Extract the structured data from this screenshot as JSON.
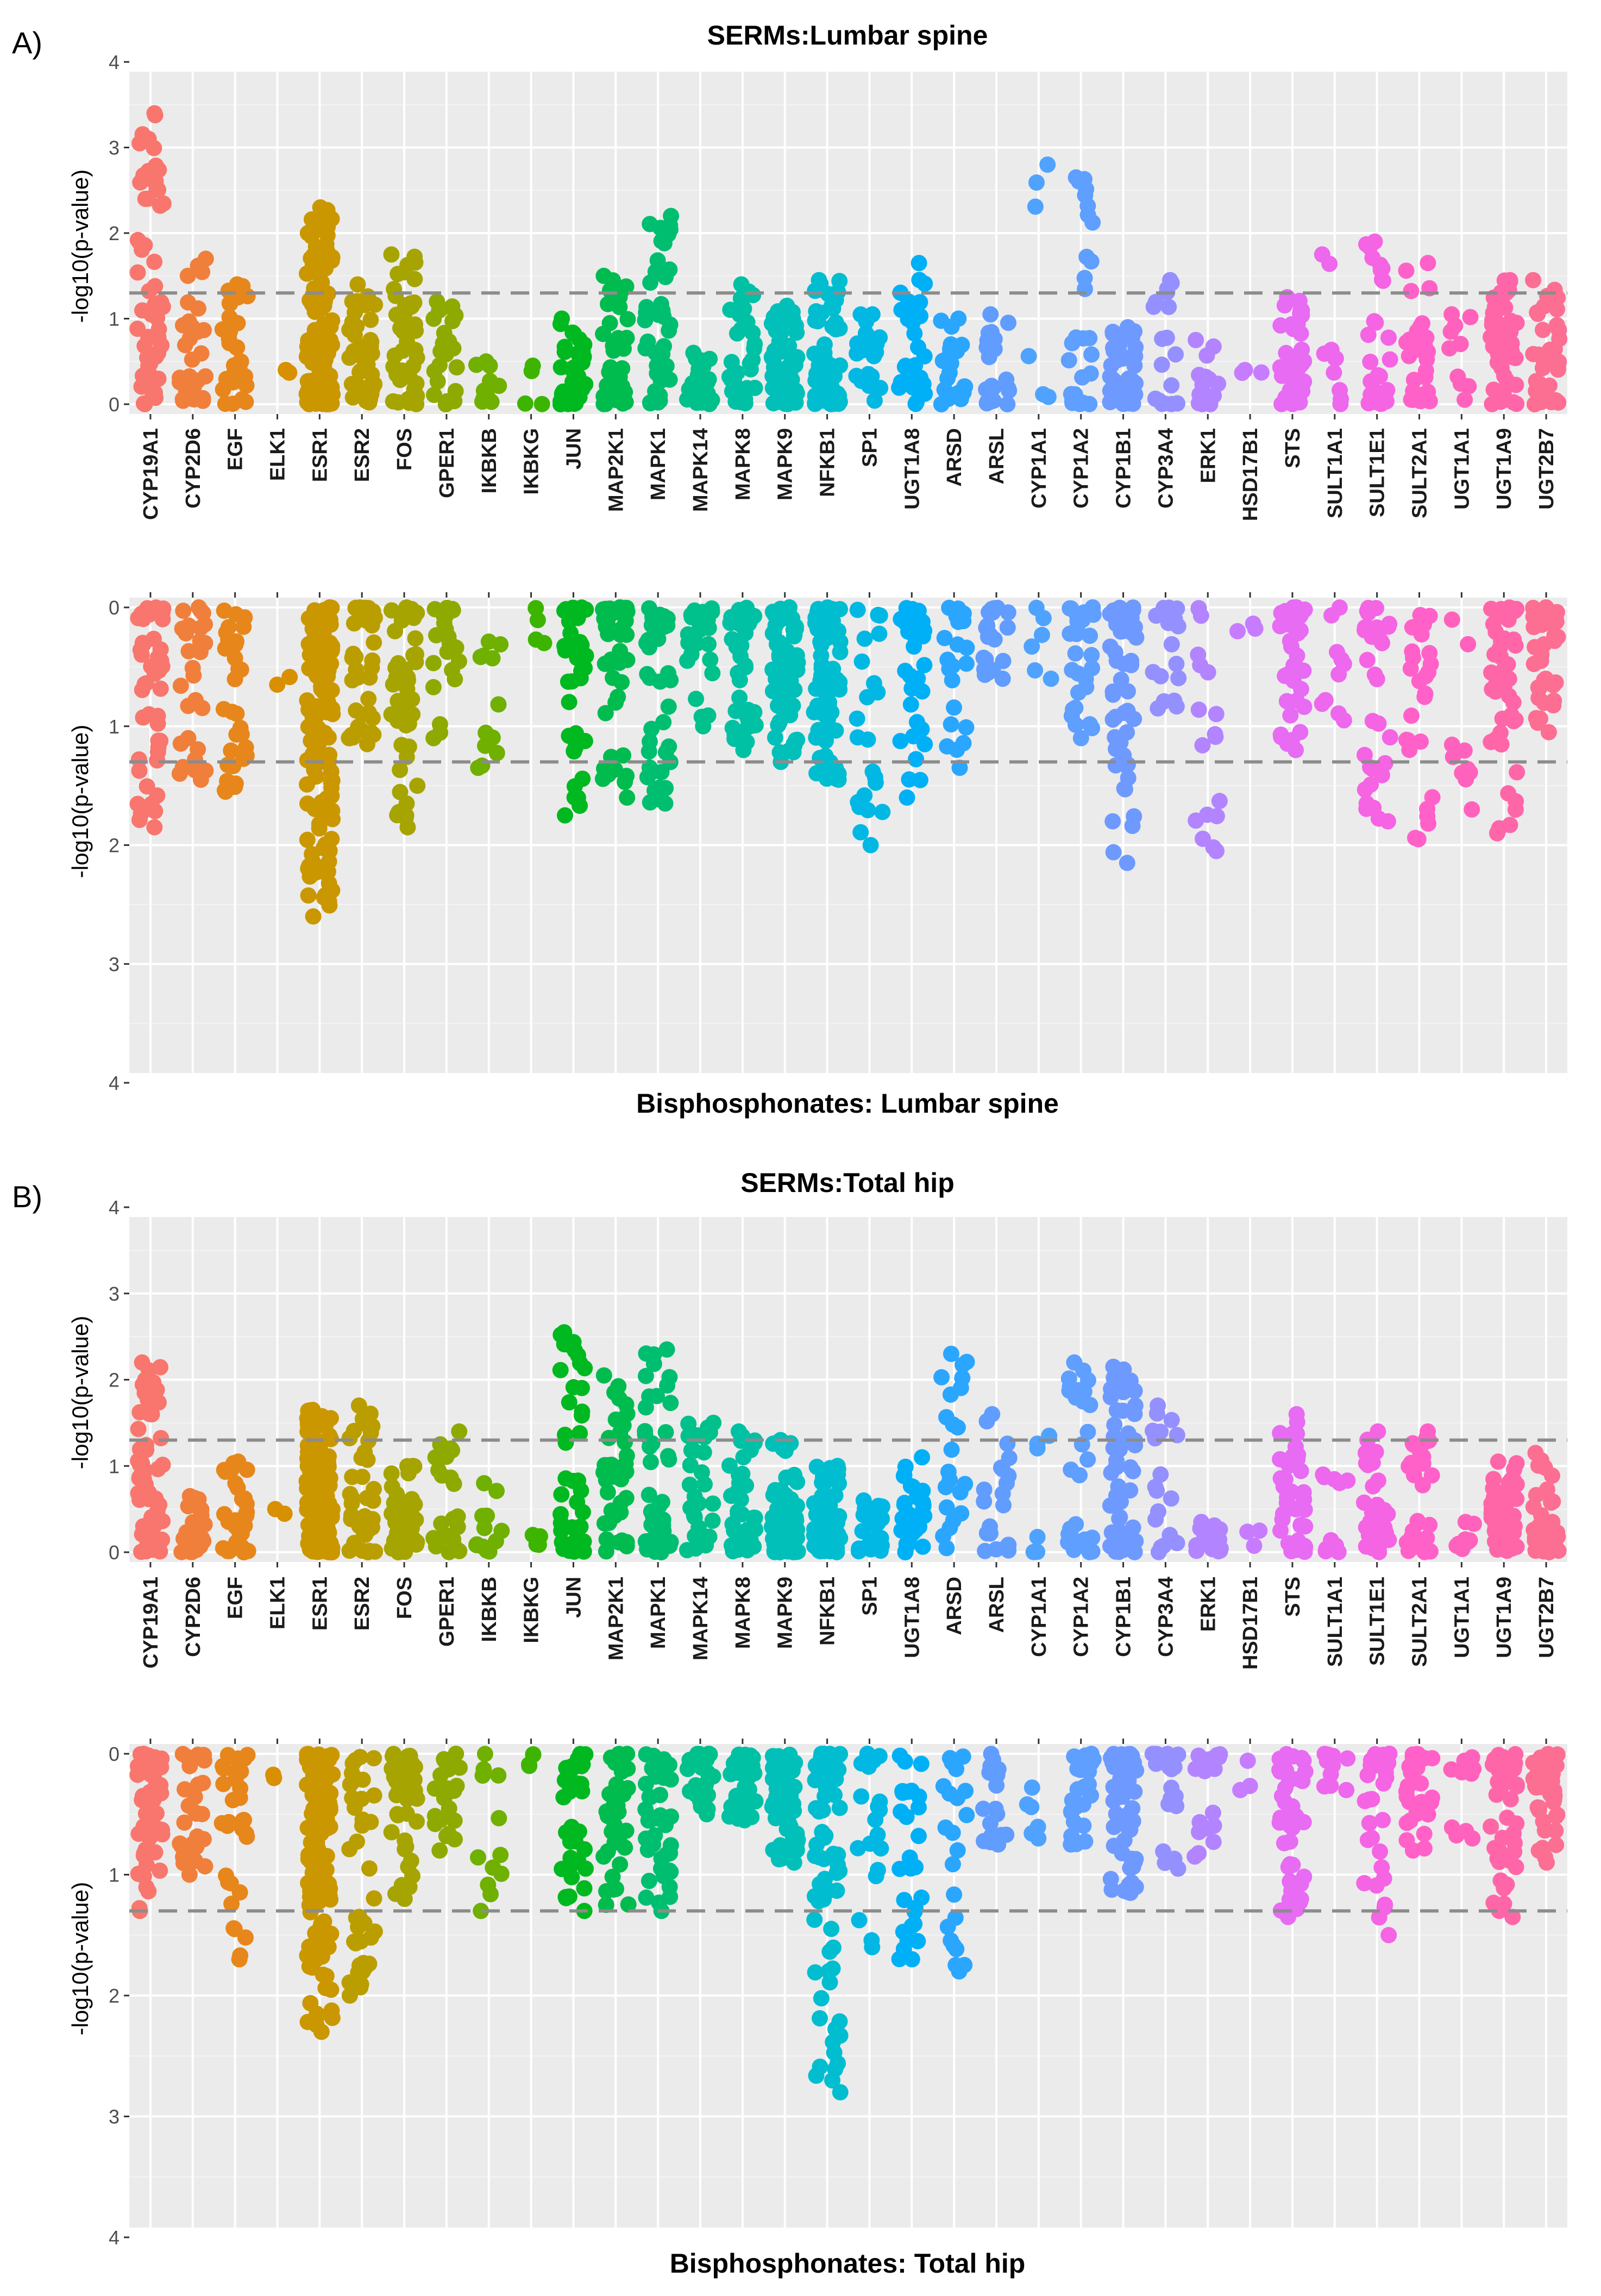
{
  "figure": {
    "panels": [
      {
        "panel_label": "A)",
        "top_title": "SERMs:Lumbar spine",
        "bottom_title": "Bisphosphonates: Lumbar spine",
        "ylabel": "-log10(p-value)"
      },
      {
        "panel_label": "B)",
        "top_title": "SERMs:Total hip",
        "bottom_title": "Bisphosphonates: Total hip",
        "ylabel": "-log10(p-value)"
      }
    ]
  },
  "chart_data": {
    "type": "scatter",
    "ylim": [
      0,
      4
    ],
    "yticks": [
      "0",
      "1",
      "2",
      "3",
      "4"
    ],
    "threshold": 1.3,
    "grid": true,
    "legend": "none",
    "genes": [
      "CYP19A1",
      "CYP2D6",
      "EGF",
      "ELK1",
      "ESR1",
      "ESR2",
      "FOS",
      "GPER1",
      "IKBKB",
      "IKBKG",
      "JUN",
      "MAP2K1",
      "MAPK1",
      "MAPK14",
      "MAPK8",
      "MAPK9",
      "NFKB1",
      "SP1",
      "UGT1A8",
      "ARSD",
      "ARSL",
      "CYP1A1",
      "CYP1A2",
      "CYP1B1",
      "CYP3A4",
      "ERK1",
      "HSD17B1",
      "STS",
      "SULT1A1",
      "SULT1E1",
      "SULT2A1",
      "UGT1A1",
      "UGT1A9",
      "UGT2B7"
    ],
    "colors": [
      "#F8766D",
      "#F07F3C",
      "#E7861B",
      "#D89000",
      "#CA9700",
      "#BA9E00",
      "#A6A400",
      "#8EAA00",
      "#6FB000",
      "#3DB500",
      "#00B81F",
      "#00BB4E",
      "#00BE70",
      "#00C08B",
      "#00C1A3",
      "#00C0B9",
      "#00BDD0",
      "#00B8E3",
      "#00B0F6",
      "#2AA6FF",
      "#619CFF",
      "#4FA3FF",
      "#5E9FFF",
      "#6E9AFF",
      "#9590FF",
      "#B284FF",
      "#C77CFF",
      "#E76BF3",
      "#ED68ED",
      "#F564E3",
      "#FF61C9",
      "#FF62BC",
      "#FF66A8",
      "#FC6E92"
    ],
    "panels": [
      {
        "top_max": [
          3.4,
          1.7,
          1.4,
          0.4,
          2.3,
          1.4,
          1.75,
          1.2,
          0.5,
          0.45,
          1.0,
          1.5,
          2.2,
          0.6,
          1.4,
          1.15,
          1.45,
          1.05,
          1.65,
          1.0,
          1.05,
          2.8,
          2.65,
          0.9,
          1.45,
          0.75,
          0.4,
          1.25,
          1.75,
          1.9,
          1.65,
          1.05,
          1.45,
          1.45
        ],
        "top_n": [
          60,
          30,
          32,
          2,
          130,
          40,
          45,
          22,
          12,
          4,
          38,
          40,
          42,
          28,
          36,
          60,
          66,
          22,
          30,
          22,
          20,
          6,
          28,
          55,
          18,
          18,
          3,
          42,
          10,
          34,
          28,
          10,
          46,
          36
        ],
        "bottom_max": [
          1.85,
          1.45,
          1.55,
          0.65,
          2.6,
          1.15,
          1.85,
          1.1,
          1.35,
          0.3,
          1.75,
          1.6,
          1.65,
          1.0,
          1.2,
          1.3,
          1.45,
          2.0,
          1.6,
          1.35,
          0.6,
          0.6,
          1.1,
          2.15,
          0.85,
          2.05,
          0.2,
          1.2,
          0.95,
          1.8,
          1.95,
          1.7,
          1.9,
          1.05
        ],
        "bottom_n": [
          48,
          30,
          32,
          2,
          130,
          40,
          45,
          22,
          12,
          4,
          38,
          40,
          42,
          28,
          36,
          60,
          66,
          22,
          30,
          22,
          20,
          6,
          28,
          55,
          18,
          18,
          3,
          42,
          10,
          34,
          28,
          10,
          46,
          36
        ]
      },
      {
        "top_max": [
          2.2,
          0.65,
          1.05,
          0.5,
          1.65,
          1.7,
          1.0,
          1.4,
          0.8,
          0.2,
          2.55,
          2.05,
          2.35,
          1.5,
          1.4,
          1.3,
          1.0,
          0.6,
          1.1,
          2.3,
          1.6,
          1.35,
          2.2,
          2.15,
          1.7,
          0.35,
          0.25,
          1.6,
          0.9,
          1.4,
          1.4,
          0.35,
          1.05,
          1.15
        ],
        "top_n": [
          60,
          30,
          32,
          2,
          130,
          40,
          45,
          22,
          12,
          4,
          38,
          40,
          42,
          28,
          36,
          60,
          66,
          22,
          30,
          22,
          20,
          6,
          28,
          55,
          18,
          18,
          3,
          42,
          10,
          34,
          28,
          10,
          46,
          36
        ],
        "bottom_max": [
          1.3,
          1.0,
          1.7,
          0.2,
          2.3,
          2.0,
          1.2,
          0.8,
          1.3,
          0.1,
          1.3,
          1.25,
          1.3,
          0.5,
          0.55,
          0.9,
          2.8,
          1.6,
          1.7,
          1.8,
          0.75,
          0.7,
          0.75,
          1.15,
          0.95,
          0.85,
          0.3,
          1.35,
          0.3,
          1.5,
          0.8,
          0.7,
          1.35,
          0.9
        ],
        "bottom_n": [
          50,
          30,
          32,
          2,
          130,
          40,
          45,
          22,
          12,
          4,
          38,
          40,
          42,
          28,
          36,
          60,
          66,
          22,
          30,
          22,
          20,
          6,
          28,
          55,
          18,
          18,
          3,
          42,
          10,
          34,
          28,
          10,
          46,
          36
        ]
      }
    ]
  }
}
